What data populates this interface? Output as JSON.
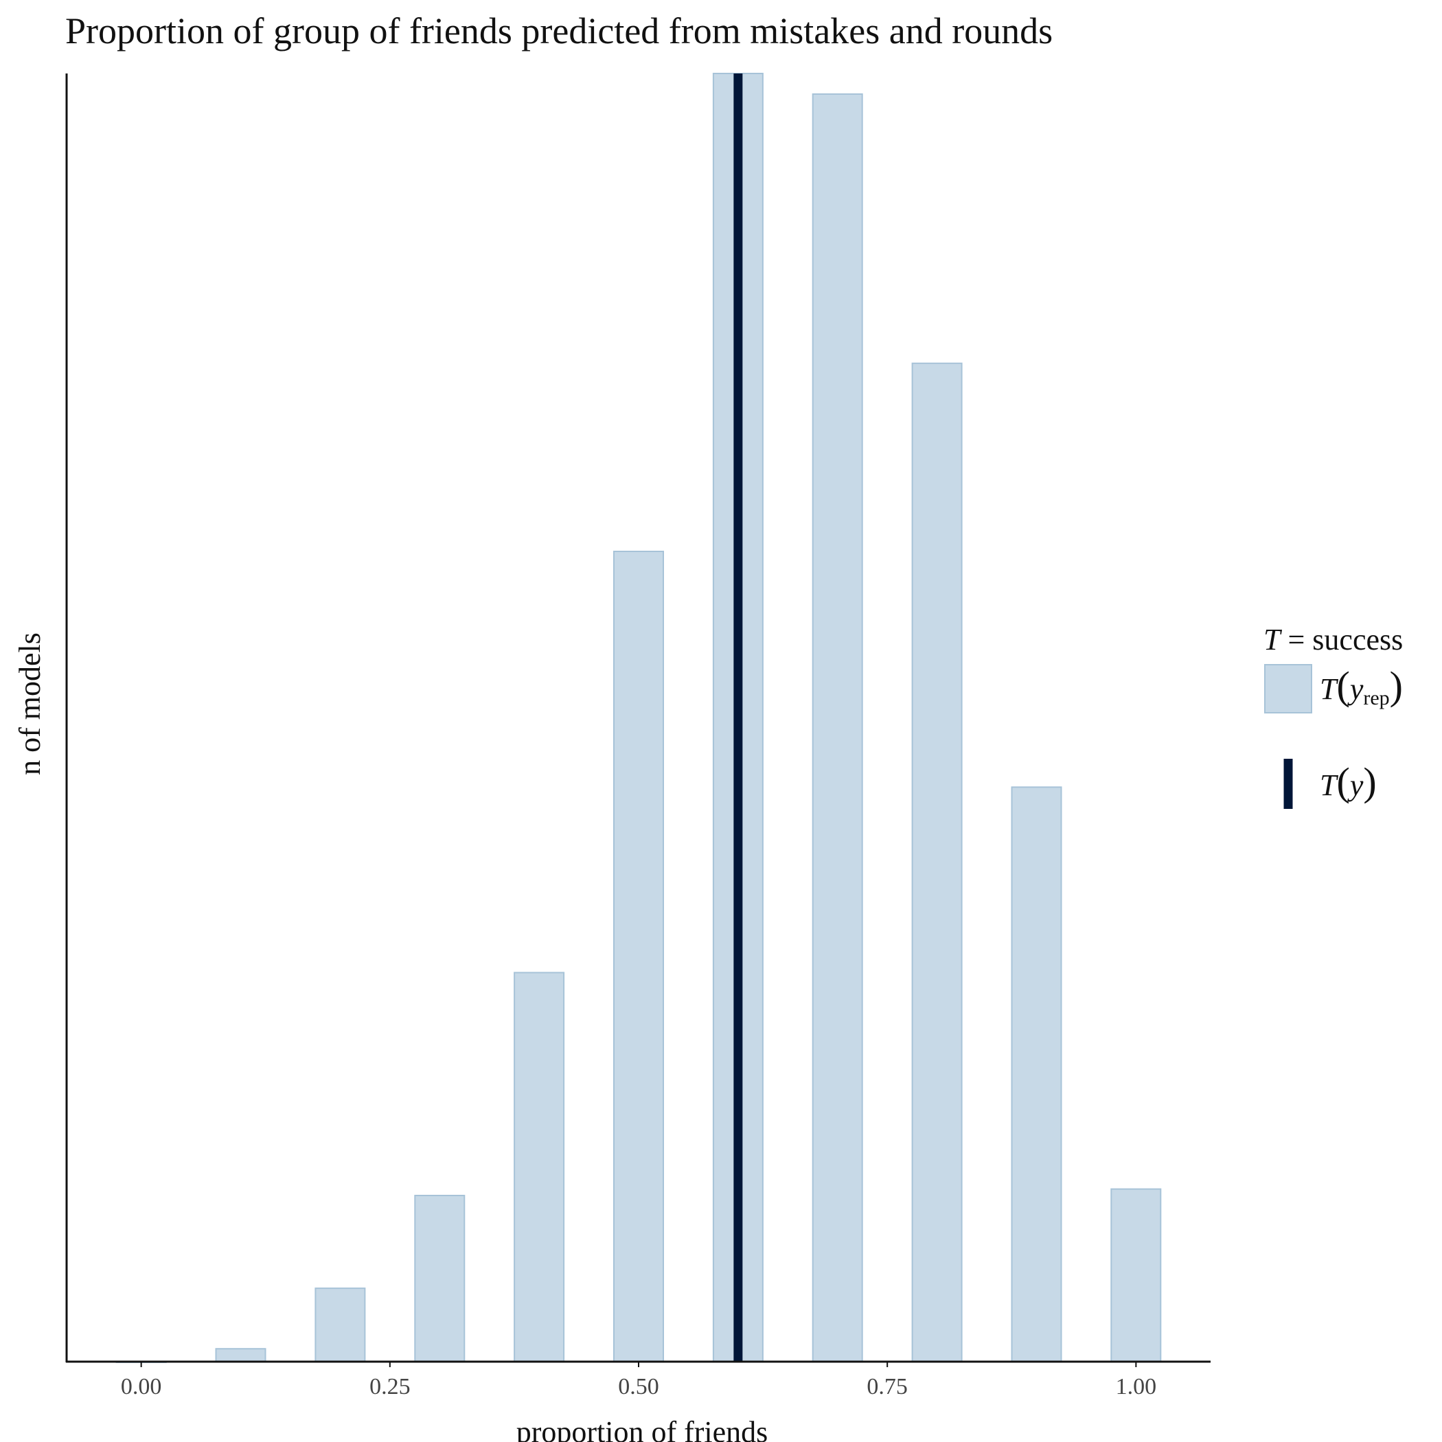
{
  "chart_data": {
    "type": "bar",
    "title": "Proportion of group of friends predicted from mistakes and rounds",
    "xlabel": "proportion of friends",
    "ylabel": "n of models",
    "x": [
      0.0,
      0.1,
      0.2,
      0.3,
      0.4,
      0.5,
      0.6,
      0.7,
      0.8,
      0.9,
      1.0
    ],
    "values": [
      0,
      1,
      5.7,
      12.9,
      30.2,
      62.9,
      100,
      98.4,
      77.5,
      44.6,
      13.4
    ],
    "xlim": [
      -0.075,
      1.075
    ],
    "ylim": [
      0,
      100
    ],
    "xticks": [
      "0.00",
      "0.25",
      "0.50",
      "0.75",
      "1.00"
    ],
    "xtick_values": [
      0,
      0.25,
      0.5,
      0.75,
      1.0
    ],
    "observed_value": 0.6,
    "grid": false,
    "legend_position": "right",
    "colors": {
      "bar_fill": "#c7d9e7",
      "bar_stroke": "#a7c3d8",
      "observed": "#011638",
      "axis": "#111111"
    },
    "legend": {
      "title_symbol": "T",
      "title_rest": " = success",
      "items": [
        {
          "symbol": "T",
          "open": "(",
          "var": "y",
          "sub": "rep",
          "close": ")"
        },
        {
          "symbol": "T",
          "open": "(",
          "var": "y",
          "close": ")"
        }
      ]
    }
  }
}
